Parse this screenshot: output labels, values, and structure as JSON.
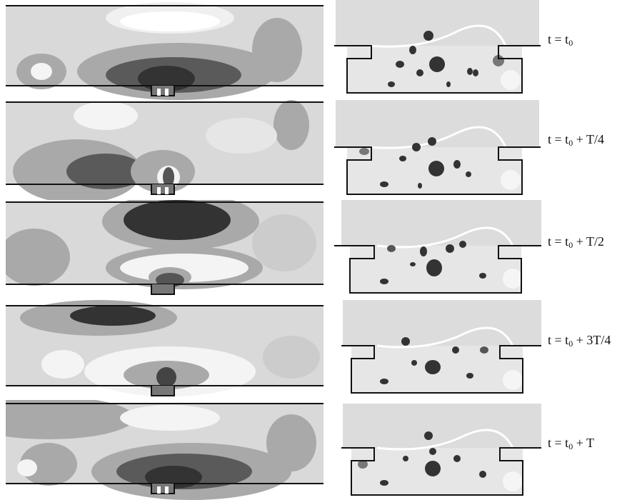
{
  "frames": [
    {
      "t": "t",
      "eq": " = ",
      "t0": "t",
      "sub": "0",
      "suffix": ""
    },
    {
      "t": "t",
      "eq": " = ",
      "t0": "t",
      "sub": "0",
      "suffix": " + T/4"
    },
    {
      "t": "t",
      "eq": " = ",
      "t0": "t",
      "sub": "0",
      "suffix": " + T/2"
    },
    {
      "t": "t",
      "eq": " = ",
      "t0": "t",
      "sub": "0",
      "suffix": " + 3T/4"
    },
    {
      "t": "t",
      "eq": " = ",
      "t0": "t",
      "sub": "0",
      "suffix": " + T"
    }
  ],
  "colors": {
    "background": "#ffffff",
    "contour_light": "#d9d9d9",
    "contour_mid": "#a9a9a9",
    "contour_dark": "#5a5a5a",
    "contour_darkest": "#333333",
    "contour_white": "#f4f4f4",
    "outline": "#111111"
  }
}
